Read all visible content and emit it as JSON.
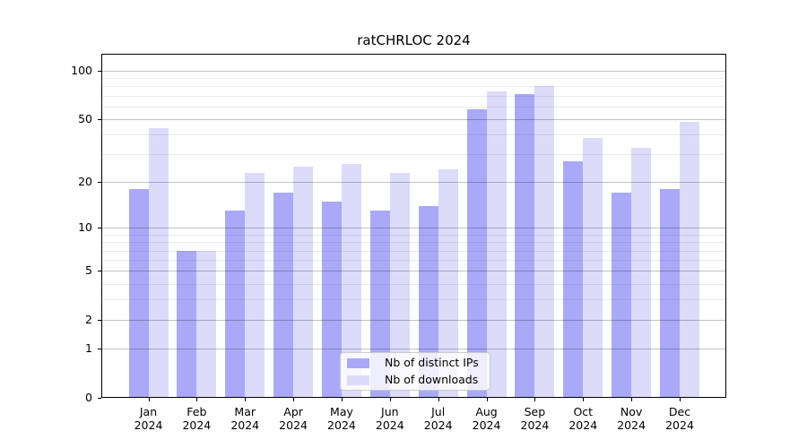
{
  "chart_data": {
    "type": "bar",
    "title": "ratCHRLOC 2024",
    "year_label": "2024",
    "categories": [
      "Jan",
      "Feb",
      "Mar",
      "Apr",
      "May",
      "Jun",
      "Jul",
      "Aug",
      "Sep",
      "Oct",
      "Nov",
      "Dec"
    ],
    "series": [
      {
        "name": "Nb of distinct IPs",
        "color": "#a9a9f8",
        "values": [
          18,
          7,
          13,
          17,
          15,
          13,
          14,
          58,
          72,
          27,
          17,
          18
        ]
      },
      {
        "name": "Nb of downloads",
        "color": "#dbdbfa",
        "values": [
          44,
          7,
          23,
          25,
          26,
          23,
          24,
          75,
          80,
          38,
          33,
          48
        ]
      }
    ],
    "xlabel": "",
    "ylabel": "",
    "yscale": "log10(1+y)",
    "ylim": [
      0,
      128
    ],
    "yticks": [
      0,
      1,
      2,
      5,
      10,
      20,
      50,
      100
    ],
    "minor_gridlines": [
      3,
      4,
      6,
      7,
      8,
      9,
      30,
      40,
      60,
      70,
      80,
      90
    ],
    "grid": true,
    "legend_position": "lower center"
  }
}
